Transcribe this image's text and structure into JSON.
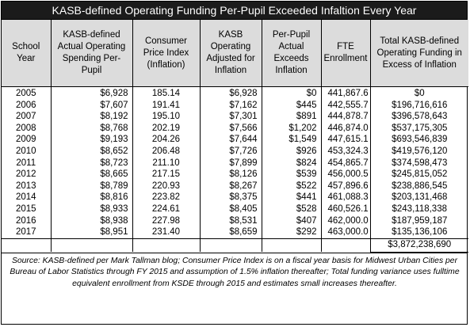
{
  "title": "KASB-defined Operating Funding Per-Pupil Exceeded Infaltion Every Year",
  "headers": [
    "School Year",
    "KASB-defined Actual Operating Spending Per-Pupil",
    "Consumer Price Index (Inflation)",
    "KASB Operating Adjusted for Inflation",
    "Per-Pupil Actual Exceeds Inflation",
    "FTE Enrollment",
    "Total KASB-defined Operating Funding in Excess of Inflation"
  ],
  "rows": [
    {
      "year": "2005",
      "actual": "$6,928",
      "cpi": "185.14",
      "adjusted": "$6,928",
      "exceeds": "$0",
      "fte": "441,867.6",
      "total": "$0"
    },
    {
      "year": "2006",
      "actual": "$7,607",
      "cpi": "191.41",
      "adjusted": "$7,162",
      "exceeds": "$445",
      "fte": "442,555.7",
      "total": "$196,716,616"
    },
    {
      "year": "2007",
      "actual": "$8,192",
      "cpi": "195.10",
      "adjusted": "$7,301",
      "exceeds": "$891",
      "fte": "444,878.7",
      "total": "$396,578,643"
    },
    {
      "year": "2008",
      "actual": "$8,768",
      "cpi": "202.19",
      "adjusted": "$7,566",
      "exceeds": "$1,202",
      "fte": "446,874.0",
      "total": "$537,175,305"
    },
    {
      "year": "2009",
      "actual": "$9,193",
      "cpi": "204.26",
      "adjusted": "$7,644",
      "exceeds": "$1,549",
      "fte": "447,615.1",
      "total": "$693,546,839"
    },
    {
      "year": "2010",
      "actual": "$8,652",
      "cpi": "206.48",
      "adjusted": "$7,726",
      "exceeds": "$926",
      "fte": "453,324.3",
      "total": "$419,576,120"
    },
    {
      "year": "2011",
      "actual": "$8,723",
      "cpi": "211.10",
      "adjusted": "$7,899",
      "exceeds": "$824",
      "fte": "454,865.7",
      "total": "$374,598,473"
    },
    {
      "year": "2012",
      "actual": "$8,665",
      "cpi": "217.15",
      "adjusted": "$8,126",
      "exceeds": "$539",
      "fte": "456,000.5",
      "total": "$245,815,052"
    },
    {
      "year": "2013",
      "actual": "$8,789",
      "cpi": "220.93",
      "adjusted": "$8,267",
      "exceeds": "$522",
      "fte": "457,896.6",
      "total": "$238,886,545"
    },
    {
      "year": "2014",
      "actual": "$8,816",
      "cpi": "223.82",
      "adjusted": "$8,375",
      "exceeds": "$441",
      "fte": "461,088.3",
      "total": "$203,131,468"
    },
    {
      "year": "2015",
      "actual": "$8,933",
      "cpi": "224.61",
      "adjusted": "$8,405",
      "exceeds": "$528",
      "fte": "460,526.1",
      "total": "$243,118,338"
    },
    {
      "year": "2016",
      "actual": "$8,938",
      "cpi": "227.98",
      "adjusted": "$8,531",
      "exceeds": "$407",
      "fte": "462,000.0",
      "total": "$187,959,187"
    },
    {
      "year": "2017",
      "actual": "$8,951",
      "cpi": "231.40",
      "adjusted": "$8,659",
      "exceeds": "$292",
      "fte": "463,000.0",
      "total": "$135,136,106"
    }
  ],
  "grand_total": "$3,872,238,690",
  "note": "Source: KASB-defined per Mark Tallman blog; Consumer Price Index is on a fiscal year basis for Midwest Urban Cities per Bureau of Labor Statistics through FY 2015 and assumption of 1.5% inflation thereafter; Total funding variance uses fulltime equivalent enrollment from KSDE through 2015 and estimates small increases thereafter."
}
